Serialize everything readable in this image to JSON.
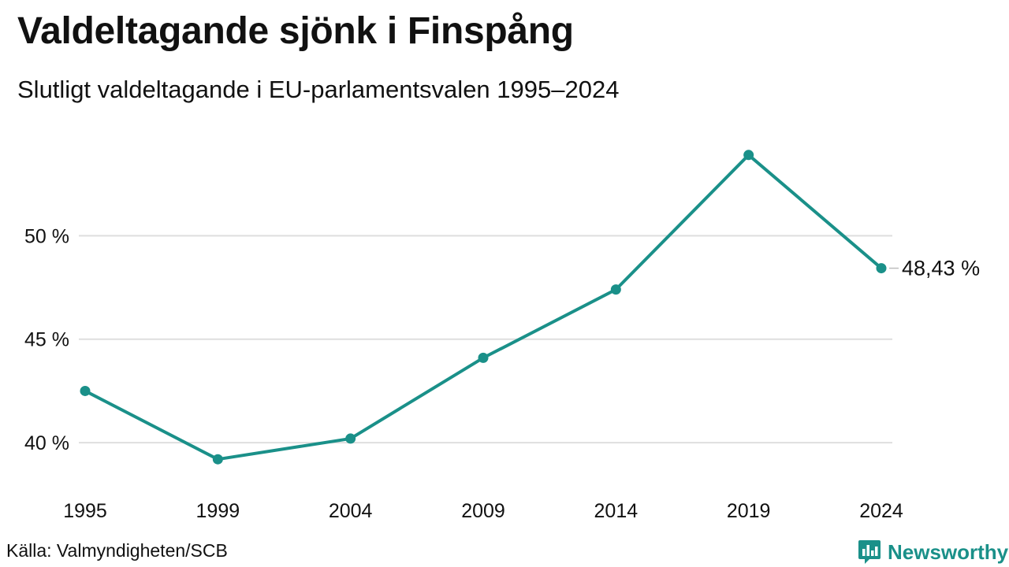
{
  "title": "Valdeltagande sjönk i Finspång",
  "subtitle": "Slutligt valdeltagande i EU-parlamentsvalen 1995–2024",
  "source": "Källa: Valmyndigheten/SCB",
  "brand": {
    "name": "Newsworthy",
    "icon": "bar-chart-logo-icon",
    "color": "#1a9089"
  },
  "chart_data": {
    "type": "line",
    "categories": [
      "1995",
      "1999",
      "2004",
      "2009",
      "2014",
      "2019",
      "2024"
    ],
    "series": [
      {
        "values": [
          42.5,
          39.2,
          40.2,
          44.1,
          47.4,
          53.9,
          48.43
        ],
        "color": "#1a9089"
      }
    ],
    "y_ticks": [
      {
        "value": 40,
        "label": "40 %"
      },
      {
        "value": 45,
        "label": "45 %"
      },
      {
        "value": 50,
        "label": "50 %"
      }
    ],
    "ylim": [
      37.8,
      55.3
    ],
    "end_label": "48,43 %",
    "grid": true,
    "xlabel": "",
    "ylabel": ""
  }
}
